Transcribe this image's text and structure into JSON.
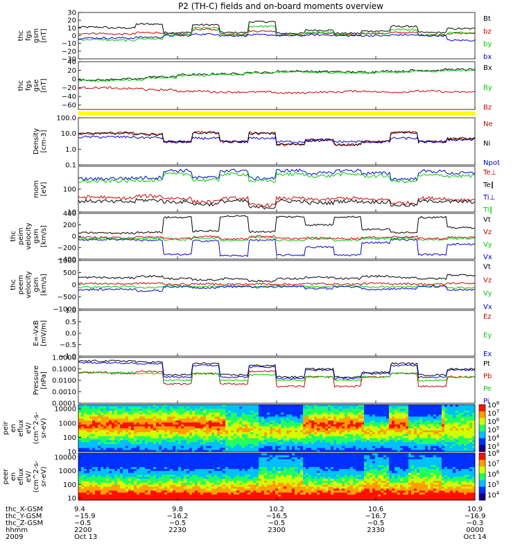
{
  "title": "P2 (TH-C) fields and on-board moments overview",
  "chart_data": [
    {
      "type": "line",
      "ylabel": [
        "thc",
        "fgs",
        "gsm",
        "[nT]"
      ],
      "ylim": [
        -30,
        30
      ],
      "yticks": [
        30,
        20,
        10,
        0,
        -10,
        -20,
        -30
      ],
      "series": [
        {
          "name": "Bt",
          "color": "#000000",
          "shape": "step",
          "levels": [
            11,
            10,
            15,
            4,
            14,
            4,
            18,
            3,
            7,
            3,
            6,
            12,
            4,
            9
          ]
        },
        {
          "name": "bz",
          "color": "#cc0000",
          "shape": "step",
          "levels": [
            3,
            2,
            4,
            2,
            8,
            2,
            6,
            1,
            3,
            1,
            3,
            4,
            1,
            3
          ]
        },
        {
          "name": "by",
          "color": "#00cc00",
          "shape": "step",
          "levels": [
            -5,
            -6,
            -4,
            1,
            10,
            1,
            12,
            1,
            4,
            1,
            3,
            8,
            1,
            4
          ]
        },
        {
          "name": "bx",
          "color": "#0000cc",
          "shape": "step",
          "levels": [
            -3,
            -3,
            -2,
            0,
            2,
            0,
            1,
            0,
            1,
            0,
            0,
            1,
            0,
            -6
          ]
        }
      ]
    },
    {
      "type": "line",
      "ylabel": [
        "thc",
        "fgs",
        "gse",
        "[nT]"
      ],
      "ylim": [
        -70,
        40
      ],
      "yticks": [
        40,
        20,
        0,
        -20,
        -40,
        -60
      ],
      "series": [
        {
          "name": "Bx",
          "color": "#000000",
          "shape": "step",
          "levels": [
            -2,
            0,
            5,
            10,
            12,
            15,
            18,
            17,
            16,
            18,
            20,
            22
          ]
        },
        {
          "name": "By",
          "color": "#00cc00",
          "shape": "step",
          "levels": [
            -4,
            -2,
            3,
            8,
            10,
            14,
            16,
            15,
            14,
            16,
            18,
            20
          ]
        },
        {
          "name": "Bz",
          "color": "#cc0000",
          "shape": "step",
          "levels": [
            -20,
            -22,
            -25,
            -28,
            -30,
            -30,
            -32,
            -30,
            -28,
            -30,
            -28,
            -30
          ]
        }
      ]
    },
    {
      "type": "line",
      "ylabel": [
        "Density",
        "[cm-3]"
      ],
      "ylim": [
        0.1,
        100
      ],
      "yscale": "log",
      "yticks": [
        100,
        10,
        1,
        0.1
      ],
      "yticklabels": [
        "100.0",
        "10.0",
        "1.0",
        "0.1"
      ],
      "series": [
        {
          "name": "Ne",
          "color": "#cc0000",
          "shape": "step",
          "levels": [
            10,
            11,
            9,
            3,
            12,
            3,
            11,
            2,
            4,
            2,
            3,
            12,
            3,
            5
          ]
        },
        {
          "name": "Ni",
          "color": "#000000",
          "shape": "step",
          "levels": [
            10,
            10,
            9,
            3,
            11,
            3,
            10,
            2,
            3.5,
            2,
            3,
            11,
            3,
            4.5
          ]
        },
        {
          "name": "Npot",
          "color": "#0000cc",
          "shape": "step",
          "levels": [
            6,
            6,
            5.5,
            3,
            5,
            3,
            5,
            3,
            4,
            3,
            3,
            5,
            3,
            4
          ]
        }
      ]
    },
    {
      "type": "line",
      "ylabel": [
        "mom",
        "[eV]"
      ],
      "ylim": [
        10,
        1000
      ],
      "yscale": "log",
      "yticks": [
        100,
        10
      ],
      "yticklabels": [
        "100",
        "10"
      ],
      "series": [
        {
          "name": "Te⊥",
          "color": "#cc0000",
          "shape": "step",
          "levels": [
            45,
            40,
            50,
            40,
            28,
            40,
            20,
            40,
            35,
            40,
            35,
            25,
            40,
            35
          ]
        },
        {
          "name": "Te∥",
          "color": "#000000",
          "shape": "step",
          "levels": [
            30,
            28,
            33,
            28,
            22,
            30,
            16,
            30,
            25,
            30,
            28,
            20,
            30,
            28
          ]
        },
        {
          "name": "Ti⊥",
          "color": "#0000cc",
          "shape": "step",
          "levels": [
            280,
            300,
            320,
            650,
            320,
            650,
            300,
            650,
            500,
            650,
            500,
            280,
            600,
            500
          ]
        },
        {
          "name": "Ti∥",
          "color": "#00cc00",
          "shape": "step",
          "levels": [
            220,
            230,
            250,
            450,
            250,
            450,
            230,
            450,
            380,
            450,
            380,
            220,
            400,
            380
          ]
        }
      ]
    },
    {
      "type": "line",
      "ylabel": [
        "thc",
        "peim",
        "velocity",
        "gsm",
        "[km/s]"
      ],
      "ylim": [
        -400,
        400
      ],
      "yticks": [
        400,
        200,
        0,
        -200,
        -400
      ],
      "series": [
        {
          "name": "Vt",
          "color": "#000000",
          "shape": "step",
          "levels": [
            60,
            55,
            70,
            330,
            90,
            350,
            80,
            340,
            200,
            340,
            120,
            70,
            330,
            150
          ]
        },
        {
          "name": "Vz",
          "color": "#cc0000",
          "shape": "step",
          "levels": [
            -20,
            -25,
            -15,
            -40,
            -10,
            -45,
            0,
            -40,
            -30,
            -40,
            -20,
            -10,
            -40,
            -20
          ]
        },
        {
          "name": "Vy",
          "color": "#00cc00",
          "shape": "step",
          "levels": [
            -40,
            -45,
            -35,
            -60,
            -30,
            -70,
            -20,
            -70,
            -50,
            -70,
            -40,
            -30,
            -60,
            -40
          ]
        },
        {
          "name": "Vx",
          "color": "#0000cc",
          "shape": "step",
          "levels": [
            -60,
            -55,
            -70,
            -320,
            -80,
            -340,
            -70,
            -330,
            -190,
            -330,
            -110,
            -60,
            -320,
            -140
          ]
        }
      ]
    },
    {
      "type": "line",
      "ylabel": [
        "thc",
        "peem",
        "velocity",
        "gsm",
        "[km/s]"
      ],
      "ylim": [
        -1000,
        1000
      ],
      "yticks": [
        1000,
        500,
        0,
        -500,
        -1000
      ],
      "series": [
        {
          "name": "Vt",
          "color": "#000000",
          "shape": "step",
          "levels": [
            300,
            280,
            350,
            250,
            200,
            250,
            150,
            250,
            300,
            250,
            350,
            300,
            250,
            400
          ]
        },
        {
          "name": "Vz",
          "color": "#cc0000",
          "shape": "step",
          "levels": [
            50,
            40,
            60,
            20,
            30,
            20,
            30,
            20,
            40,
            20,
            50,
            40,
            20,
            60
          ]
        },
        {
          "name": "Vy",
          "color": "#00cc00",
          "shape": "step",
          "levels": [
            -100,
            -80,
            -120,
            -50,
            -60,
            -50,
            -60,
            -50,
            -80,
            -50,
            -90,
            -80,
            -50,
            -120
          ]
        },
        {
          "name": "Vx",
          "color": "#0000cc",
          "shape": "step",
          "levels": [
            -200,
            -180,
            -250,
            -80,
            -120,
            -80,
            -100,
            -80,
            -150,
            -80,
            -180,
            -160,
            -80,
            -220
          ]
        }
      ]
    },
    {
      "type": "line",
      "ylabel": [
        "E=-VxB",
        "[mV/m]"
      ],
      "ylim": [
        -1,
        1
      ],
      "yticks": [
        1.0,
        0.5,
        0.0,
        -0.5,
        -1.0
      ],
      "yticklabels": [
        "1.0",
        "0.5",
        "0.0",
        "-0.5",
        "-1.0"
      ],
      "series": [
        {
          "name": "Ez",
          "color": "#cc0000",
          "shape": "none",
          "levels": []
        },
        {
          "name": "Ey",
          "color": "#00cc00",
          "shape": "none",
          "levels": []
        },
        {
          "name": "Ex",
          "color": "#0000cc",
          "shape": "none",
          "levels": []
        }
      ]
    },
    {
      "type": "line",
      "ylabel": [
        "Pressure",
        "[nPa]"
      ],
      "ylim": [
        0.0001,
        1
      ],
      "yscale": "log",
      "yticks": [
        1,
        0.1,
        0.01,
        0.001,
        0.0001
      ],
      "yticklabels": [
        "1.0000",
        "0.1000",
        "0.0100",
        "0.0010",
        "0.0001"
      ],
      "series": [
        {
          "name": "Pt",
          "color": "#000000",
          "shape": "step",
          "levels": [
            0.5,
            0.5,
            0.4,
            0.03,
            0.3,
            0.03,
            0.2,
            0.02,
            0.1,
            0.02,
            0.05,
            0.3,
            0.03,
            0.1
          ]
        },
        {
          "name": "Pb",
          "color": "#cc0000",
          "shape": "step",
          "levels": [
            0.05,
            0.04,
            0.06,
            0.005,
            0.04,
            0.005,
            0.06,
            0.003,
            0.02,
            0.003,
            0.02,
            0.04,
            0.003,
            0.02
          ]
        },
        {
          "name": "Pe",
          "color": "#00cc00",
          "shape": "step",
          "levels": [
            0.05,
            0.05,
            0.04,
            0.01,
            0.04,
            0.01,
            0.03,
            0.01,
            0.02,
            0.01,
            0.02,
            0.04,
            0.01,
            0.02
          ]
        },
        {
          "name": "Pi",
          "color": "#0000cc",
          "shape": "step",
          "levels": [
            0.35,
            0.35,
            0.3,
            0.02,
            0.2,
            0.02,
            0.15,
            0.015,
            0.08,
            0.015,
            0.04,
            0.2,
            0.02,
            0.08
          ]
        }
      ]
    },
    {
      "type": "heatmap",
      "ylabel": [
        "thc",
        "peir",
        "en",
        "eflux",
        "eV/",
        "(cm^2-s-",
        "sr-eV)"
      ],
      "ylim": [
        10,
        20000
      ],
      "yscale": "log",
      "yticks": [
        10000,
        1000,
        100,
        10
      ],
      "yticklabels": [
        "10000",
        "1000",
        "100",
        "10"
      ],
      "colorbar": {
        "labels": [
          "10^8",
          "10^7",
          "10^6",
          "10^5",
          "10^4",
          "10^3"
        ]
      }
    },
    {
      "type": "heatmap",
      "ylabel": [
        "thc",
        "peer",
        "en",
        "eflux",
        "eV/",
        "(cm^2-s-",
        "sr-eV)"
      ],
      "ylim": [
        7,
        20000
      ],
      "yscale": "log",
      "yticks": [
        10000,
        1000,
        100,
        10
      ],
      "yticklabels": [
        "10000",
        "1000",
        "100",
        "10"
      ],
      "colorbar": {
        "labels": [
          "10^8",
          "10^7",
          "10^6",
          "10^5",
          "10^4"
        ]
      }
    }
  ],
  "xaxis": {
    "row_labels": [
      "thc_X-GSM",
      "thc_Y-GSM",
      "thc_Z-GSM",
      "hhmm",
      "2009"
    ],
    "ticks": [
      [
        "9.4",
        "-15.9",
        "-0.5",
        "2200",
        "Oct 13"
      ],
      [
        "9.8",
        "-16.2",
        "-0.5",
        "2230",
        ""
      ],
      [
        "10.2",
        "-16.5",
        "-0.5",
        "2300",
        ""
      ],
      [
        "10.6",
        "-16.7",
        "-0.5",
        "2330",
        ""
      ],
      [
        "10.9",
        "-16.9",
        "-0.3",
        "0000",
        "Oct 14"
      ]
    ]
  }
}
